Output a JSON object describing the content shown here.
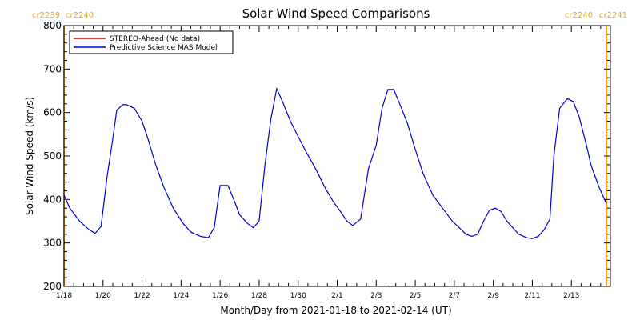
{
  "chart_data": {
    "type": "line",
    "title": "Solar Wind Speed Comparisons",
    "xlabel": "Month/Day from 2021-01-18 to 2021-02-14 (UT)",
    "ylabel": "Solar Wind Speed (km/s)",
    "xlim": [
      0,
      28
    ],
    "ylim": [
      200,
      800
    ],
    "x_ticks": [
      {
        "x": 0,
        "label": "1/18"
      },
      {
        "x": 2,
        "label": "1/20"
      },
      {
        "x": 4,
        "label": "1/22"
      },
      {
        "x": 6,
        "label": "1/24"
      },
      {
        "x": 8,
        "label": "1/26"
      },
      {
        "x": 10,
        "label": "1/28"
      },
      {
        "x": 12,
        "label": "1/30"
      },
      {
        "x": 14,
        "label": "2/1"
      },
      {
        "x": 16,
        "label": "2/3"
      },
      {
        "x": 18,
        "label": "2/5"
      },
      {
        "x": 20,
        "label": "2/7"
      },
      {
        "x": 22,
        "label": "2/9"
      },
      {
        "x": 24,
        "label": "2/11"
      },
      {
        "x": 26,
        "label": "2/13"
      }
    ],
    "y_ticks": [
      200,
      300,
      400,
      500,
      600,
      700,
      800
    ],
    "grid": false,
    "legend": {
      "placement": "top-left",
      "entries": [
        {
          "label": "STEREO-Ahead (No data)",
          "color": "#c00000"
        },
        {
          "label": "Predictive Science MAS Model",
          "color": "#0000cc"
        }
      ]
    },
    "carrington_markers": [
      {
        "x": 0,
        "left_label": "cr2239",
        "right_label": "cr2240",
        "label_side": "left"
      },
      {
        "x": 27.8,
        "left_label": "cr2240",
        "right_label": "cr2241",
        "label_side": "right"
      }
    ],
    "marker_color": "#f2a51a",
    "series": [
      {
        "name": "Predictive Science MAS Model",
        "color": "#0000cc",
        "x": [
          0,
          0.3,
          0.8,
          1.3,
          1.6,
          1.9,
          2.2,
          2.5,
          2.7,
          3.0,
          3.2,
          3.6,
          4.0,
          4.3,
          4.7,
          5.1,
          5.6,
          6.1,
          6.5,
          7.0,
          7.4,
          7.7,
          8.0,
          8.4,
          8.7,
          9.0,
          9.4,
          9.7,
          10.0,
          10.3,
          10.6,
          10.9,
          11.2,
          11.6,
          12.0,
          12.4,
          12.9,
          13.4,
          13.8,
          14.2,
          14.5,
          14.8,
          15.2,
          15.6,
          16.0,
          16.3,
          16.6,
          16.9,
          17.2,
          17.6,
          18.0,
          18.4,
          18.9,
          19.4,
          19.9,
          20.3,
          20.6,
          20.9,
          21.2,
          21.5,
          21.8,
          22.1,
          22.4,
          22.7,
          23.0,
          23.3,
          23.7,
          24.0,
          24.3,
          24.6,
          24.9,
          25.1,
          25.4,
          25.8,
          26.1,
          26.4,
          26.8,
          27.0,
          27.4,
          27.8
        ],
        "values": [
          410,
          380,
          350,
          330,
          322,
          338,
          450,
          540,
          605,
          618,
          618,
          610,
          580,
          540,
          480,
          430,
          380,
          345,
          325,
          315,
          312,
          335,
          432,
          432,
          400,
          365,
          345,
          335,
          350,
          480,
          585,
          655,
          625,
          580,
          545,
          510,
          470,
          425,
          395,
          370,
          350,
          340,
          355,
          470,
          525,
          610,
          653,
          653,
          620,
          575,
          515,
          460,
          410,
          380,
          350,
          333,
          320,
          315,
          320,
          350,
          375,
          380,
          372,
          350,
          335,
          320,
          312,
          310,
          315,
          330,
          355,
          500,
          610,
          632,
          625,
          590,
          520,
          480,
          430,
          390
        ]
      }
    ]
  }
}
